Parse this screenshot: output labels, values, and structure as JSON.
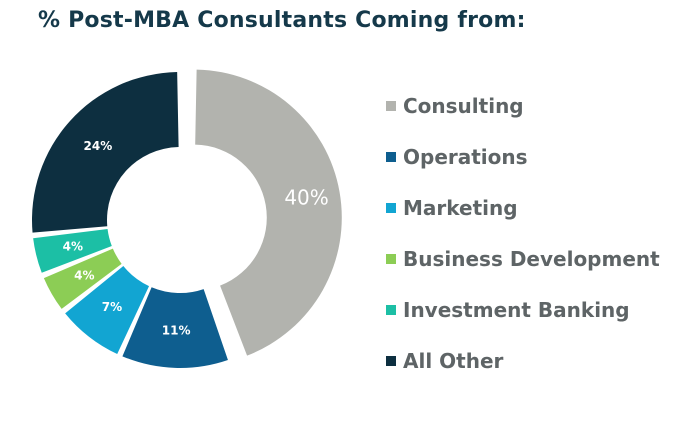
{
  "title": "% Post-MBA Consultants Coming from:",
  "chart_data": {
    "type": "pie",
    "donut": true,
    "categories": [
      "Consulting",
      "Operations",
      "Marketing",
      "Business Development",
      "Investment Banking",
      "All Other"
    ],
    "values": [
      40,
      11,
      7,
      4,
      4,
      24
    ],
    "labels": [
      "40%",
      "11%",
      "7%",
      "4%",
      "4%",
      "24%"
    ],
    "colors": [
      "#b2b3ae",
      "#0e5e8f",
      "#12a5d2",
      "#8ccd55",
      "#1cbfa5",
      "#0d2f40"
    ],
    "exploded": "Consulting",
    "legend_position": "right"
  }
}
